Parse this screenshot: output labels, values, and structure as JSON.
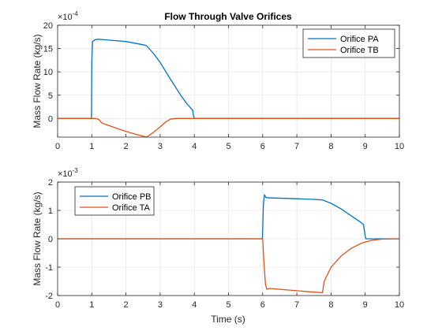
{
  "chart_data": [
    {
      "type": "line",
      "title": "Flow Through Valve Orifices",
      "xlabel": "",
      "ylabel": "Mass Flow Rate (kg/s)",
      "y_exponent_label": "×10",
      "y_exponent": "-4",
      "xlim": [
        0,
        10
      ],
      "ylim": [
        -4,
        20
      ],
      "xticks": [
        "0",
        "1",
        "2",
        "3",
        "4",
        "5",
        "6",
        "7",
        "8",
        "9",
        "10"
      ],
      "yticks": [
        "0",
        "5",
        "10",
        "15",
        "20"
      ],
      "grid": true,
      "legend_position": "top-right",
      "series": [
        {
          "name": "Orifice PA",
          "color": "#0072BD",
          "points": [
            [
              0,
              0
            ],
            [
              0.99,
              0
            ],
            [
              1.0,
              12
            ],
            [
              1.02,
              16.5
            ],
            [
              1.1,
              16.9
            ],
            [
              1.2,
              17.0
            ],
            [
              1.5,
              16.8
            ],
            [
              2.0,
              16.5
            ],
            [
              2.5,
              15.8
            ],
            [
              2.6,
              15.6
            ],
            [
              2.8,
              14.0
            ],
            [
              3.0,
              12.0
            ],
            [
              3.2,
              9.6
            ],
            [
              3.4,
              7.3
            ],
            [
              3.6,
              5.0
            ],
            [
              3.8,
              3.0
            ],
            [
              3.95,
              1.8
            ],
            [
              3.98,
              0.5
            ],
            [
              4.0,
              0
            ],
            [
              10,
              0
            ]
          ]
        },
        {
          "name": "Orifice TB",
          "color": "#D95319",
          "points": [
            [
              0,
              0
            ],
            [
              1.1,
              0
            ],
            [
              1.2,
              -0.2
            ],
            [
              1.3,
              -1.0
            ],
            [
              1.5,
              -1.5
            ],
            [
              1.8,
              -2.3
            ],
            [
              2.1,
              -3.0
            ],
            [
              2.4,
              -3.6
            ],
            [
              2.6,
              -4.2
            ],
            [
              2.8,
              -3.0
            ],
            [
              3.0,
              -1.8
            ],
            [
              3.15,
              -0.8
            ],
            [
              3.3,
              -0.15
            ],
            [
              3.45,
              0
            ],
            [
              10,
              0
            ]
          ]
        }
      ]
    },
    {
      "type": "line",
      "title": "",
      "xlabel": "Time (s)",
      "ylabel": "Mass Flow Rate (kg/s)",
      "y_exponent_label": "×10",
      "y_exponent": "-3",
      "xlim": [
        0,
        10
      ],
      "ylim": [
        -2,
        2
      ],
      "xticks": [
        "0",
        "1",
        "2",
        "3",
        "4",
        "5",
        "6",
        "7",
        "8",
        "9",
        "10"
      ],
      "yticks": [
        "-2",
        "-1",
        "0",
        "1",
        "2"
      ],
      "grid": true,
      "legend_position": "top-left",
      "series": [
        {
          "name": "Orifice PB",
          "color": "#0072BD",
          "points": [
            [
              0,
              0
            ],
            [
              5.99,
              0
            ],
            [
              6.02,
              1.2
            ],
            [
              6.05,
              1.55
            ],
            [
              6.1,
              1.45
            ],
            [
              6.3,
              1.44
            ],
            [
              7.0,
              1.41
            ],
            [
              7.5,
              1.39
            ],
            [
              7.75,
              1.37
            ],
            [
              8.0,
              1.25
            ],
            [
              8.3,
              1.05
            ],
            [
              8.6,
              0.8
            ],
            [
              8.85,
              0.6
            ],
            [
              8.95,
              0.5
            ],
            [
              9.0,
              0.1
            ],
            [
              9.02,
              0
            ],
            [
              10,
              0
            ]
          ]
        },
        {
          "name": "Orifice TA",
          "color": "#D95319",
          "points": [
            [
              0,
              0
            ],
            [
              6.0,
              0
            ],
            [
              6.03,
              -0.7
            ],
            [
              6.08,
              -1.6
            ],
            [
              6.12,
              -1.78
            ],
            [
              6.2,
              -1.75
            ],
            [
              6.5,
              -1.78
            ],
            [
              7.0,
              -1.83
            ],
            [
              7.5,
              -1.88
            ],
            [
              7.75,
              -1.9
            ],
            [
              7.8,
              -1.5
            ],
            [
              8.0,
              -1.0
            ],
            [
              8.3,
              -0.6
            ],
            [
              8.6,
              -0.33
            ],
            [
              8.9,
              -0.15
            ],
            [
              9.2,
              -0.05
            ],
            [
              9.5,
              -0.01
            ],
            [
              10,
              0
            ]
          ]
        }
      ]
    }
  ]
}
